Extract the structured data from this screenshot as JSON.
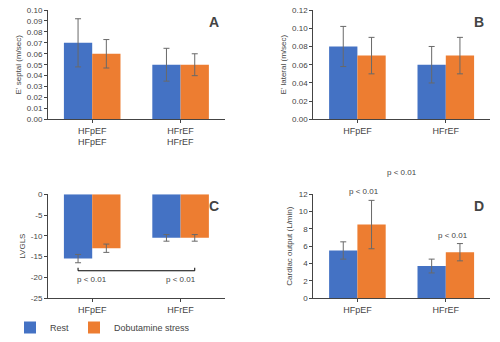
{
  "chart_data": [
    {
      "type": "bar",
      "title": "A",
      "ylabel": "E' septal (m/sec)",
      "categories": [
        "HFpEF",
        "HFrEF"
      ],
      "series": [
        {
          "name": "Rest",
          "color": "#4472C4",
          "values": [
            0.07,
            0.05
          ],
          "errors": [
            0.022,
            0.015
          ]
        },
        {
          "name": "Dobutamine stress",
          "color": "#ED7D31",
          "values": [
            0.06,
            0.05
          ],
          "errors": [
            0.013,
            0.01
          ]
        }
      ],
      "ylim": [
        0,
        0.1
      ],
      "yticks": [
        {
          "value": 0,
          "label": "0.00"
        },
        0.01,
        0.02,
        0.03,
        0.04,
        0.05,
        0.06,
        0.07,
        0.08,
        0.09,
        {
          "value": 0.1,
          "label": "0.10"
        }
      ],
      "grid": false,
      "legend": "lower left",
      "annotations": [
        {
          "text": "HFpEF",
          "x": "HFpEF"
        },
        {
          "text": "HFrEF",
          "x": "HFrEF"
        }
      ]
    },
    {
      "type": "bar",
      "title": "B",
      "ylabel": "E' lateral (m/sec)",
      "categories": [
        "HFpEF",
        "HFrEF"
      ],
      "series": [
        {
          "name": "Rest",
          "color": "#4472C4",
          "values": [
            0.08,
            0.06
          ],
          "errors": [
            0.022,
            0.02
          ]
        },
        {
          "name": "Dobutamine stress",
          "color": "#ED7D31",
          "values": [
            0.07,
            0.07
          ],
          "errors": [
            0.02,
            0.02
          ]
        }
      ],
      "ylim": [
        0,
        0.12
      ],
      "yticks": [
        {
          "value": 0,
          "label": "0.00"
        },
        0.02,
        0.04,
        0.06,
        0.08,
        {
          "value": 0.1,
          "label": "0.10"
        },
        0.12
      ],
      "grid": false
    },
    {
      "type": "bar",
      "title": "C",
      "ylabel": "LVGLS",
      "categories": [
        "HFpEF",
        "HFrEF"
      ],
      "series": [
        {
          "name": "Rest",
          "color": "#4472C4",
          "values": [
            -15.5,
            -10.5
          ],
          "errors": [
            1.0,
            0.8
          ]
        },
        {
          "name": "Dobutamine stress",
          "color": "#ED7D31",
          "values": [
            -13.0,
            -10.5
          ],
          "errors": [
            1.0,
            0.8
          ]
        }
      ],
      "ylim": [
        -25,
        0
      ],
      "yticks": [
        0,
        -5,
        -10,
        -15,
        -20,
        -25
      ],
      "grid": false,
      "annotations": [
        {
          "text": "p < 0.01",
          "x": "HFpEF"
        },
        {
          "text": "p < 0.01",
          "x": "HFrEF"
        }
      ]
    },
    {
      "type": "bar",
      "title": "D",
      "ylabel": "Cardiac output (L/min)",
      "categories": [
        "HFpEF",
        "HFrEF"
      ],
      "series": [
        {
          "name": "Rest",
          "color": "#4472C4",
          "values": [
            5.5,
            3.7
          ],
          "errors": [
            1.0,
            0.8
          ]
        },
        {
          "name": "Dobutamine stress",
          "color": "#ED7D31",
          "values": [
            8.5,
            5.3
          ],
          "errors": [
            2.8,
            1.0
          ]
        }
      ],
      "ylim": [
        0,
        12
      ],
      "yticks": [
        0,
        2,
        4,
        6,
        8,
        10,
        12
      ],
      "grid": false,
      "annotations": [
        {
          "text": "p < 0.01",
          "x": "HFpEF"
        },
        {
          "text": "p < 0.01",
          "x": "HFrEF"
        },
        {
          "text": "p < 0.01"
        }
      ]
    }
  ]
}
